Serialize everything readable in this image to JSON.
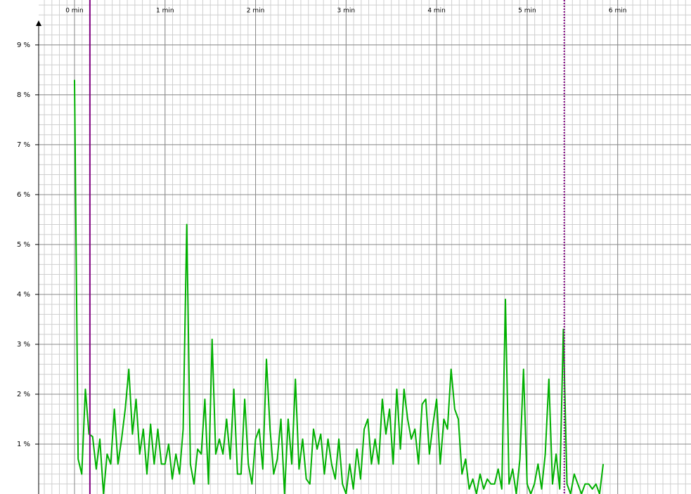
{
  "chart_data": {
    "type": "line",
    "x": [
      0,
      0.04,
      0.08,
      0.12,
      0.16,
      0.2,
      0.24,
      0.28,
      0.32,
      0.36,
      0.4,
      0.44,
      0.48,
      0.52,
      0.56,
      0.6,
      0.64,
      0.68,
      0.72,
      0.76,
      0.8,
      0.84,
      0.88,
      0.92,
      0.96,
      1,
      1.04,
      1.08,
      1.12,
      1.16,
      1.2,
      1.24,
      1.28,
      1.32,
      1.36,
      1.4,
      1.44,
      1.48,
      1.52,
      1.56,
      1.6,
      1.64,
      1.68,
      1.72,
      1.76,
      1.8,
      1.84,
      1.88,
      1.92,
      1.96,
      2,
      2.04,
      2.08,
      2.12,
      2.16,
      2.2,
      2.24,
      2.28,
      2.32,
      2.36,
      2.4,
      2.44,
      2.48,
      2.52,
      2.56,
      2.6,
      2.64,
      2.68,
      2.72,
      2.76,
      2.8,
      2.84,
      2.88,
      2.92,
      2.96,
      3,
      3.04,
      3.08,
      3.12,
      3.16,
      3.2,
      3.24,
      3.28,
      3.32,
      3.36,
      3.4,
      3.44,
      3.48,
      3.52,
      3.56,
      3.6,
      3.64,
      3.68,
      3.72,
      3.76,
      3.8,
      3.84,
      3.88,
      3.92,
      3.96,
      4,
      4.04,
      4.08,
      4.12,
      4.16,
      4.2,
      4.24,
      4.28,
      4.32,
      4.36,
      4.4,
      4.44,
      4.48,
      4.52,
      4.56,
      4.6,
      4.64,
      4.68,
      4.72,
      4.76,
      4.8,
      4.84,
      4.88,
      4.92,
      4.96,
      5,
      5.04,
      5.08,
      5.12,
      5.16,
      5.2,
      5.24,
      5.28,
      5.32,
      5.36,
      5.4,
      5.44,
      5.48,
      5.52,
      5.56,
      5.6,
      5.64,
      5.68,
      5.72,
      5.76,
      5.8,
      5.84
    ],
    "series": [
      {
        "color": "#00b000",
        "values": [
          8.3,
          0.7,
          0.4,
          2.1,
          1.2,
          1.15,
          0.5,
          1.1,
          0,
          0.8,
          0.6,
          1.7,
          0.6,
          1.1,
          1.7,
          2.5,
          1.2,
          1.9,
          0.8,
          1.3,
          0.4,
          1.4,
          0.6,
          1.3,
          0.6,
          0.6,
          1.0,
          0.3,
          0.8,
          0.4,
          1.3,
          5.4,
          0.6,
          0.2,
          0.9,
          0.8,
          1.9,
          0.2,
          3.1,
          0.8,
          1.1,
          0.8,
          1.5,
          0.7,
          2.1,
          0.4,
          0.4,
          1.9,
          0.6,
          0.2,
          1.1,
          1.3,
          0.5,
          2.7,
          1.3,
          0.4,
          0.7,
          1.5,
          0,
          1.5,
          0.6,
          2.3,
          0.5,
          1.1,
          0.3,
          0.2,
          1.3,
          0.9,
          1.2,
          0.4,
          1.1,
          0.6,
          0.3,
          1.1,
          0.2,
          0,
          0.6,
          0.1,
          0.9,
          0.3,
          1.3,
          1.5,
          0.6,
          1.1,
          0.6,
          1.9,
          1.2,
          1.7,
          0.6,
          2.1,
          0.9,
          2.1,
          1.5,
          1.1,
          1.3,
          0.6,
          1.8,
          1.9,
          0.8,
          1.4,
          1.9,
          0.6,
          1.5,
          1.3,
          2.5,
          1.7,
          1.5,
          0.4,
          0.7,
          0.1,
          0.3,
          0,
          0.4,
          0.1,
          0.3,
          0.2,
          0.2,
          0.5,
          0.1,
          3.9,
          0.2,
          0.5,
          0,
          0.7,
          2.5,
          0.2,
          0,
          0.2,
          0.6,
          0.1,
          0.8,
          2.3,
          0.2,
          0.8,
          0.1,
          3.3,
          0.2,
          0,
          0.4,
          0.2,
          0,
          0.2,
          0.2,
          0.1,
          0.2,
          0,
          0.6
        ]
      }
    ],
    "xlim": [
      -0.396,
      6.81
    ],
    "xticks": [
      {
        "value": 0,
        "label": "0 min"
      },
      {
        "value": 1,
        "label": "1 min"
      },
      {
        "value": 2,
        "label": "2 min"
      },
      {
        "value": 3,
        "label": "3 min"
      },
      {
        "value": 4,
        "label": "4 min"
      },
      {
        "value": 5,
        "label": "5 min"
      },
      {
        "value": 6,
        "label": "6 min"
      }
    ],
    "ylim": [
      0,
      9.9
    ],
    "yticks": [
      {
        "value": 1,
        "label": "1 %"
      },
      {
        "value": 2,
        "label": "2 %"
      },
      {
        "value": 3,
        "label": "3 %"
      },
      {
        "value": 4,
        "label": "4 %"
      },
      {
        "value": 5,
        "label": "5 %"
      },
      {
        "value": 6,
        "label": "6 %"
      },
      {
        "value": 7,
        "label": "7 %"
      },
      {
        "value": 8,
        "label": "8 %"
      },
      {
        "value": 9,
        "label": "9 %"
      }
    ],
    "grid": true,
    "minor_divisions": {
      "x": 12,
      "y": 5
    },
    "markers": [
      {
        "x": 0.17,
        "color": "#800080",
        "style": "solid"
      },
      {
        "x": 5.41,
        "color": "#800080",
        "style": "dotted"
      }
    ]
  }
}
